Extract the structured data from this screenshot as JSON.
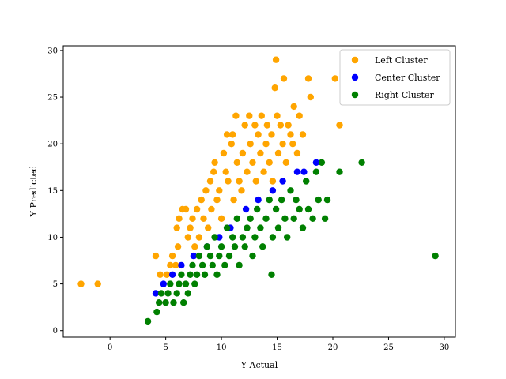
{
  "chart_data": {
    "type": "scatter",
    "xlabel": "Y Actual",
    "ylabel": "Y Predicted",
    "xlim": [
      -4.2,
      31.0
    ],
    "ylim": [
      -0.7,
      30.5
    ],
    "xticks": [
      0,
      5,
      10,
      15,
      20,
      25,
      30
    ],
    "yticks": [
      0,
      5,
      10,
      15,
      20,
      25,
      30
    ],
    "grid": false,
    "legend_position": "top-right",
    "series": [
      {
        "name": "Left Cluster",
        "color": "#ffa500",
        "points": [
          [
            -2.6,
            5
          ],
          [
            -1.1,
            5
          ],
          [
            4.1,
            8
          ],
          [
            4.5,
            6
          ],
          [
            5.1,
            6
          ],
          [
            5.4,
            7
          ],
          [
            5.6,
            8
          ],
          [
            5.9,
            7
          ],
          [
            6.1,
            9
          ],
          [
            6.0,
            11
          ],
          [
            6.2,
            12
          ],
          [
            6.5,
            13
          ],
          [
            6.8,
            13
          ],
          [
            7.0,
            10
          ],
          [
            7.2,
            11
          ],
          [
            7.4,
            12
          ],
          [
            7.6,
            9
          ],
          [
            7.8,
            13
          ],
          [
            8.0,
            10
          ],
          [
            8.2,
            14
          ],
          [
            8.4,
            12
          ],
          [
            8.6,
            15
          ],
          [
            8.8,
            11
          ],
          [
            9.0,
            16
          ],
          [
            9.1,
            13
          ],
          [
            9.3,
            17
          ],
          [
            9.4,
            18
          ],
          [
            9.6,
            14
          ],
          [
            9.8,
            15
          ],
          [
            10.0,
            12
          ],
          [
            10.2,
            19
          ],
          [
            10.4,
            17
          ],
          [
            10.5,
            21
          ],
          [
            10.6,
            16
          ],
          [
            10.9,
            20
          ],
          [
            11.0,
            21
          ],
          [
            11.1,
            14
          ],
          [
            11.3,
            23
          ],
          [
            11.4,
            18
          ],
          [
            11.6,
            16
          ],
          [
            11.8,
            15
          ],
          [
            11.9,
            19
          ],
          [
            12.1,
            22
          ],
          [
            12.3,
            17
          ],
          [
            12.5,
            23
          ],
          [
            12.6,
            20
          ],
          [
            12.8,
            18
          ],
          [
            13.0,
            22
          ],
          [
            13.1,
            16
          ],
          [
            13.3,
            21
          ],
          [
            13.5,
            19
          ],
          [
            13.6,
            23
          ],
          [
            13.8,
            17
          ],
          [
            14.0,
            20
          ],
          [
            14.1,
            22
          ],
          [
            14.3,
            18
          ],
          [
            14.5,
            21
          ],
          [
            14.6,
            16
          ],
          [
            14.8,
            26
          ],
          [
            14.9,
            29
          ],
          [
            15.0,
            23
          ],
          [
            15.1,
            19
          ],
          [
            15.3,
            22
          ],
          [
            15.5,
            20
          ],
          [
            15.6,
            27
          ],
          [
            15.8,
            18
          ],
          [
            16.0,
            22
          ],
          [
            16.2,
            21
          ],
          [
            16.4,
            20
          ],
          [
            16.5,
            24
          ],
          [
            16.8,
            19
          ],
          [
            17.0,
            23
          ],
          [
            17.3,
            21
          ],
          [
            17.8,
            27
          ],
          [
            18.0,
            25
          ],
          [
            20.2,
            27
          ],
          [
            20.6,
            22
          ]
        ]
      },
      {
        "name": "Center Cluster",
        "color": "#0000ff",
        "points": [
          [
            4.1,
            4
          ],
          [
            4.8,
            5
          ],
          [
            5.6,
            6
          ],
          [
            6.4,
            7
          ],
          [
            7.5,
            8
          ],
          [
            8.7,
            9
          ],
          [
            9.8,
            10
          ],
          [
            10.8,
            11
          ],
          [
            12.2,
            13
          ],
          [
            13.3,
            14
          ],
          [
            14.6,
            15
          ],
          [
            15.5,
            16
          ],
          [
            16.8,
            17
          ],
          [
            17.4,
            17
          ],
          [
            18.5,
            18
          ]
        ]
      },
      {
        "name": "Right Cluster",
        "color": "#008000",
        "points": [
          [
            3.4,
            1
          ],
          [
            4.2,
            2
          ],
          [
            4.4,
            3
          ],
          [
            4.6,
            4
          ],
          [
            5.0,
            3
          ],
          [
            5.2,
            4
          ],
          [
            5.4,
            5
          ],
          [
            5.7,
            3
          ],
          [
            6.0,
            4
          ],
          [
            6.2,
            5
          ],
          [
            6.4,
            6
          ],
          [
            6.6,
            3
          ],
          [
            6.8,
            5
          ],
          [
            7.0,
            4
          ],
          [
            7.2,
            6
          ],
          [
            7.4,
            7
          ],
          [
            7.6,
            5
          ],
          [
            7.8,
            6
          ],
          [
            8.0,
            8
          ],
          [
            8.3,
            7
          ],
          [
            8.5,
            6
          ],
          [
            8.7,
            9
          ],
          [
            9.0,
            8
          ],
          [
            9.2,
            7
          ],
          [
            9.4,
            10
          ],
          [
            9.6,
            6
          ],
          [
            9.8,
            8
          ],
          [
            10.0,
            9
          ],
          [
            10.3,
            7
          ],
          [
            10.5,
            11
          ],
          [
            10.7,
            8
          ],
          [
            11.0,
            10
          ],
          [
            11.2,
            9
          ],
          [
            11.4,
            12
          ],
          [
            11.6,
            7
          ],
          [
            11.9,
            10
          ],
          [
            12.1,
            9
          ],
          [
            12.3,
            11
          ],
          [
            12.6,
            12
          ],
          [
            12.8,
            8
          ],
          [
            13.0,
            10
          ],
          [
            13.2,
            13
          ],
          [
            13.5,
            11
          ],
          [
            13.7,
            9
          ],
          [
            14.0,
            12
          ],
          [
            14.3,
            14
          ],
          [
            14.5,
            6
          ],
          [
            14.6,
            10
          ],
          [
            14.9,
            13
          ],
          [
            15.1,
            11
          ],
          [
            15.4,
            14
          ],
          [
            15.7,
            12
          ],
          [
            15.9,
            10
          ],
          [
            16.2,
            15
          ],
          [
            16.5,
            12
          ],
          [
            16.7,
            14
          ],
          [
            17.0,
            13
          ],
          [
            17.3,
            11
          ],
          [
            17.6,
            16
          ],
          [
            17.8,
            13
          ],
          [
            18.2,
            12
          ],
          [
            18.5,
            17
          ],
          [
            18.7,
            14
          ],
          [
            19.0,
            18
          ],
          [
            19.3,
            12
          ],
          [
            19.5,
            14
          ],
          [
            20.6,
            17
          ],
          [
            22.6,
            18
          ],
          [
            29.2,
            8
          ]
        ]
      }
    ]
  }
}
